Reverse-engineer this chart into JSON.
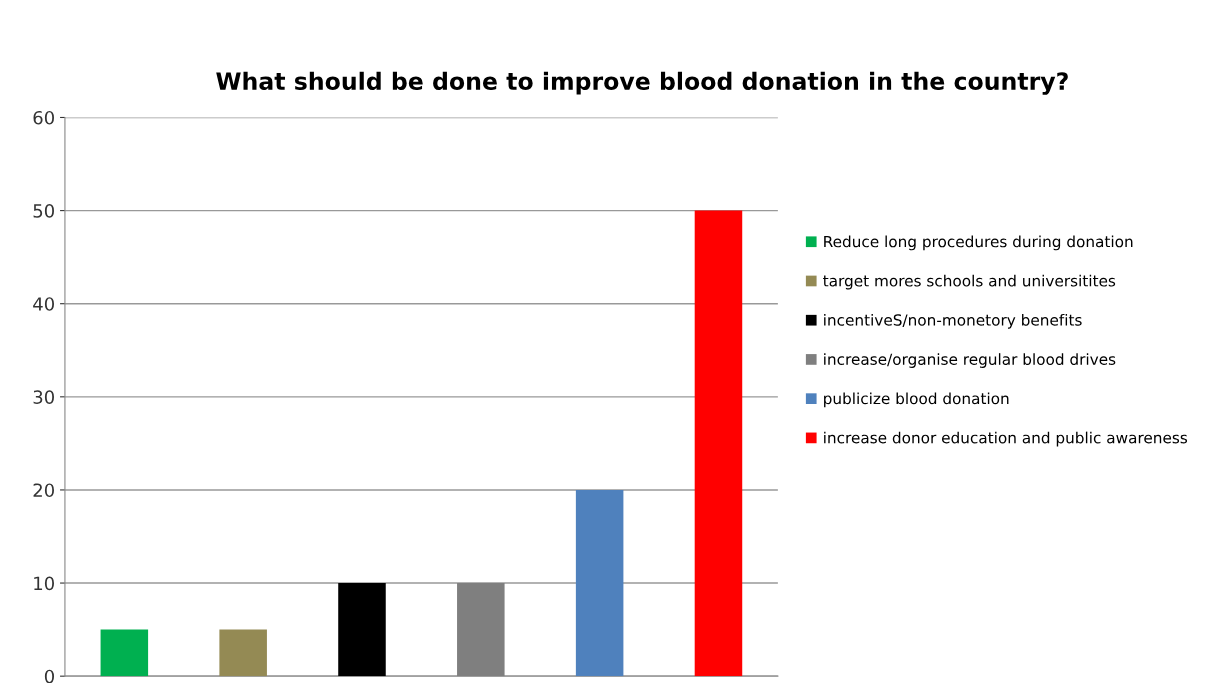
{
  "chart_data": {
    "type": "bar",
    "title": "What should be done to improve blood donation in the country?",
    "categories": [
      null,
      null,
      null,
      null,
      null,
      null
    ],
    "series": [
      {
        "name": "Reduce long procedures during donation",
        "color": "#00b050",
        "values": [
          5,
          null,
          null,
          null,
          null,
          null
        ]
      },
      {
        "name": "target mores schools and universitites",
        "color": "#948a54",
        "values": [
          null,
          5,
          null,
          null,
          null,
          null
        ]
      },
      {
        "name": "incentiveS/non-monetory benefits",
        "color": "#000000",
        "values": [
          null,
          null,
          10,
          null,
          null,
          null
        ]
      },
      {
        "name": "increase/organise regular blood drives",
        "color": "#7f7f7f",
        "values": [
          null,
          null,
          null,
          10,
          null,
          null
        ]
      },
      {
        "name": "publicize blood donation",
        "color": "#4f81bd",
        "values": [
          null,
          null,
          null,
          null,
          20,
          null
        ]
      },
      {
        "name": "increase donor education and public awareness",
        "color": "#ff0000",
        "values": [
          null,
          null,
          null,
          null,
          null,
          50
        ]
      }
    ],
    "ylim": [
      0,
      60
    ],
    "yticks": [
      0,
      10,
      20,
      30,
      40,
      50,
      60
    ],
    "grid": "y",
    "legend": "right"
  }
}
